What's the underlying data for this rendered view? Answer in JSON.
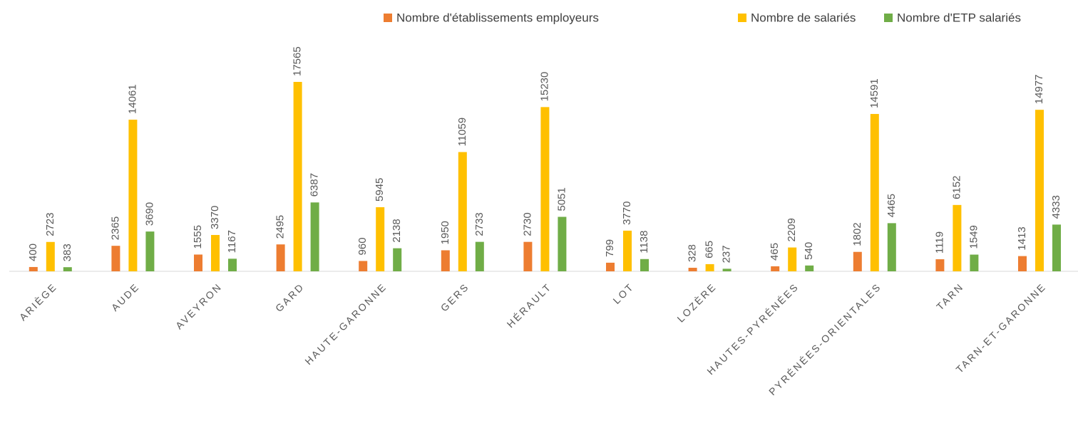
{
  "chart_data": {
    "type": "bar",
    "categories": [
      "ARIÈGE",
      "AUDE",
      "AVEYRON",
      "GARD",
      "HAUTE-GARONNE",
      "GERS",
      "HÉRAULT",
      "LOT",
      "LOZÈRE",
      "HAUTES-PYRÉNÉES",
      "PYRÉNÉES-ORIENTALES",
      "TARN",
      "TARN-ET-GARONNE"
    ],
    "series": [
      {
        "name": "Nombre d'établissements employeurs",
        "color": "#ed7d31",
        "values": [
          400,
          2365,
          1555,
          2495,
          960,
          1950,
          2730,
          799,
          328,
          465,
          1802,
          1119,
          1413
        ]
      },
      {
        "name": "Nombre de salariés",
        "color": "#ffc000",
        "values": [
          2723,
          14061,
          3370,
          17565,
          5945,
          11059,
          15230,
          3770,
          665,
          2209,
          14591,
          6152,
          14977
        ]
      },
      {
        "name": "Nombre d'ETP salariés",
        "color": "#70ad47",
        "values": [
          383,
          3690,
          1167,
          6387,
          2138,
          2733,
          5051,
          1138,
          237,
          540,
          4465,
          1549,
          4333
        ]
      }
    ],
    "legend": "top"
  }
}
